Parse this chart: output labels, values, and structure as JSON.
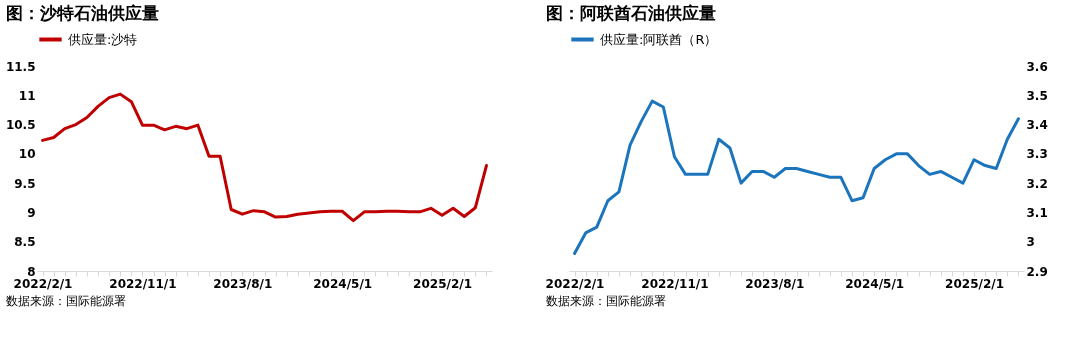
{
  "chart_data": [
    {
      "type": "line",
      "title": "图：沙特石油供应量",
      "categories": [
        "2022/2/1",
        null,
        null,
        null,
        null,
        null,
        null,
        null,
        null,
        "2022/11/1",
        null,
        null,
        null,
        null,
        null,
        null,
        null,
        null,
        "2023/8/1",
        null,
        null,
        null,
        null,
        null,
        null,
        null,
        null,
        "2024/5/1",
        null,
        null,
        null,
        null,
        null,
        null,
        null,
        null,
        "2025/2/1",
        null,
        null,
        null,
        null
      ],
      "series": [
        {
          "name": "供应量:沙特",
          "color": "#c00000",
          "values": [
            10.23,
            10.28,
            10.43,
            10.5,
            10.62,
            10.81,
            10.96,
            11.02,
            10.89,
            10.49,
            10.49,
            10.41,
            10.47,
            10.43,
            10.49,
            9.96,
            9.96,
            9.05,
            8.97,
            9.03,
            9.01,
            8.92,
            8.93,
            8.97,
            8.99,
            9.01,
            9.02,
            9.02,
            8.86,
            9.01,
            9.01,
            9.02,
            9.02,
            9.01,
            9.01,
            9.07,
            8.95,
            9.07,
            8.93,
            9.08,
            9.8
          ]
        }
      ],
      "ylim": [
        8,
        11.5
      ],
      "yticks": [
        8,
        8.5,
        9,
        9.5,
        10,
        10.5,
        11,
        11.5
      ],
      "grid": false,
      "legend": "top",
      "annotations": [
        "数据来源：国际能源署"
      ]
    },
    {
      "type": "line",
      "title": "图：阿联酋石油供应量",
      "categories": [
        "2022/2/1",
        null,
        null,
        null,
        null,
        null,
        null,
        null,
        null,
        "2022/11/1",
        null,
        null,
        null,
        null,
        null,
        null,
        null,
        null,
        "2023/8/1",
        null,
        null,
        null,
        null,
        null,
        null,
        null,
        null,
        "2024/5/1",
        null,
        null,
        null,
        null,
        null,
        null,
        null,
        null,
        "2025/2/1",
        null,
        null,
        null,
        null
      ],
      "series": [
        {
          "name": "供应量:阿联酋（R）",
          "color": "#1c75bc",
          "axis": "y2",
          "values": [
            2.96,
            3.03,
            3.05,
            3.14,
            3.17,
            3.33,
            3.41,
            3.48,
            3.46,
            3.29,
            3.23,
            3.23,
            3.23,
            3.35,
            3.32,
            3.2,
            3.24,
            3.24,
            3.22,
            3.25,
            3.25,
            3.24,
            3.23,
            3.22,
            3.22,
            3.14,
            3.15,
            3.25,
            3.28,
            3.3,
            3.3,
            3.26,
            3.23,
            3.24,
            3.22,
            3.2,
            3.28,
            3.26,
            3.25,
            3.35,
            3.42
          ]
        }
      ],
      "y2lim": [
        2.9,
        3.6
      ],
      "y2ticks": [
        2.9,
        3,
        3.1,
        3.2,
        3.3,
        3.4,
        3.5,
        3.6
      ],
      "grid": false,
      "legend": "top",
      "annotations": [
        "数据来源：国际能源署"
      ]
    }
  ]
}
